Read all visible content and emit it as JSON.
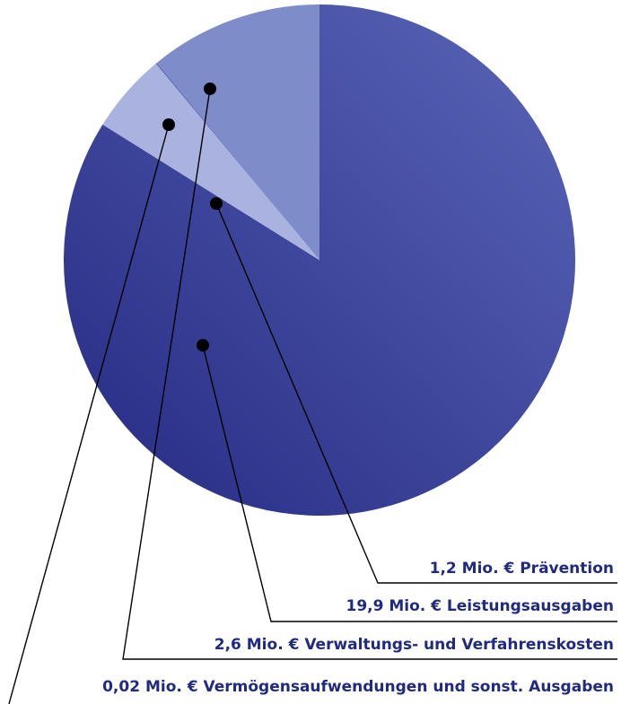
{
  "chart_data": {
    "type": "pie",
    "unit": "Mio. €",
    "slices": [
      {
        "label": "19,9 Mio. € Leistungsausgaben",
        "value": 19.9,
        "color": "#2e3490"
      },
      {
        "label": "1,2 Mio. € Prävention",
        "value": 1.2,
        "color": "#aab3df"
      },
      {
        "label": "0,02 Mio. € Vermögensaufwendungen und sonst. Ausgaben",
        "value": 0.02,
        "color": "#5a66b6"
      },
      {
        "label": "2,6 Mio. € Verwaltungs- und Verfahrenskosten",
        "value": 2.6,
        "color": "#7f8cca"
      }
    ],
    "legend": [
      "1,2 Mio. € Prävention",
      "19,9 Mio. € Leistungsausgaben",
      "2,6 Mio. € Verwaltungs- und Verfahrenskosten",
      "0,02 Mio. € Vermögensaufwendungen und sonst. Ausgaben"
    ],
    "legend_placement": "bottom-right"
  }
}
